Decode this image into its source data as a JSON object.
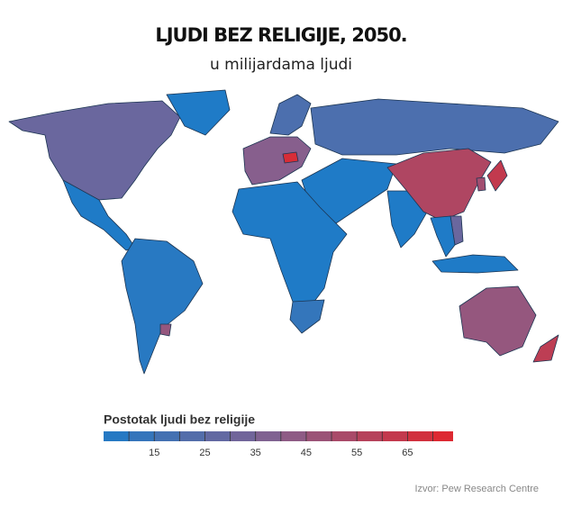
{
  "header": {
    "title": "LJUDI BEZ RELIGIJE, 2050.",
    "subtitle": "u milijardama ljudi"
  },
  "map": {
    "regions": [
      30,
      5,
      5,
      8,
      45,
      40,
      20,
      70,
      20,
      5,
      5,
      12,
      5,
      55,
      62,
      50,
      30,
      5,
      5,
      45,
      60
    ]
  },
  "legend": {
    "title": "Postotak ljudi bez religije",
    "range": [
      5,
      74
    ],
    "ticks": [
      15,
      25,
      35,
      45,
      55,
      65
    ],
    "boundaries": [
      10,
      15,
      20,
      25,
      30,
      35,
      40,
      45,
      50,
      55,
      60,
      65,
      70
    ],
    "colors": [
      "#1f7bc7",
      "#86608e",
      "#e2262c"
    ]
  },
  "source": "Izvor: Pew Research Centre"
}
